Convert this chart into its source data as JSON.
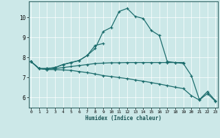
{
  "xlabel": "Humidex (Indice chaleur)",
  "bg_color": "#cce8e8",
  "line_color": "#1a6b6b",
  "grid_color": "#ffffff",
  "x_ticks": [
    0,
    1,
    2,
    3,
    4,
    5,
    6,
    7,
    8,
    9,
    10,
    11,
    12,
    13,
    14,
    15,
    16,
    17,
    18,
    19,
    20,
    21,
    22,
    23
  ],
  "y_ticks": [
    6,
    7,
    8,
    9,
    10
  ],
  "ylim": [
    5.5,
    10.8
  ],
  "xlim": [
    -0.3,
    23.3
  ],
  "curves": [
    [
      7.8,
      7.45,
      7.45,
      7.5,
      7.65,
      7.75,
      7.85,
      8.1,
      8.45,
      9.3,
      9.5,
      10.3,
      10.45,
      10.05,
      9.95,
      9.35,
      9.1,
      7.8,
      7.75,
      7.7,
      7.1,
      5.9,
      6.3,
      5.85
    ],
    [
      7.8,
      7.45,
      7.45,
      7.5,
      7.65,
      7.75,
      7.85,
      8.1,
      8.6,
      8.7,
      null,
      null,
      null,
      null,
      null,
      null,
      null,
      null,
      null,
      null,
      null,
      null,
      null,
      null
    ],
    [
      7.8,
      7.45,
      7.4,
      7.45,
      7.5,
      7.55,
      7.6,
      7.65,
      7.7,
      7.72,
      7.74,
      7.74,
      7.75,
      7.75,
      7.75,
      7.75,
      7.75,
      7.75,
      7.75,
      7.75,
      null,
      null,
      null,
      null
    ],
    [
      7.8,
      7.45,
      7.4,
      7.4,
      7.38,
      7.36,
      7.3,
      7.25,
      7.18,
      7.1,
      7.05,
      7.0,
      6.95,
      6.88,
      6.82,
      6.75,
      6.68,
      6.6,
      6.52,
      6.45,
      6.1,
      5.88,
      6.2,
      5.82
    ]
  ]
}
